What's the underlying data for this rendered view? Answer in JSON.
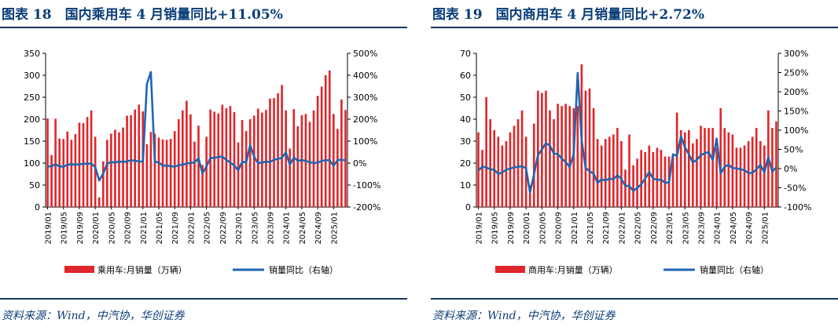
{
  "colors": {
    "bar": "#e0262b",
    "line": "#1f66b0",
    "title": "#0a3d78",
    "rule": "#17375e"
  },
  "x_tick_labels": [
    "2019/01",
    "2019/05",
    "2019/09",
    "2020/01",
    "2020/05",
    "2020/09",
    "2021/01",
    "2021/05",
    "2021/09",
    "2022/01",
    "2022/05",
    "2022/09",
    "2023/01",
    "2023/05",
    "2023/09",
    "2024/01",
    "2024/05",
    "2024/09",
    "2025/01"
  ],
  "chart_data": [
    {
      "type": "bar",
      "title": "图表 18　国内乘用车 4 月销量同比+11.05%",
      "source": "资料来源：Wind，中汽协，华创证券",
      "legend": {
        "bar": "乘用车:月销量（万辆）",
        "line": "销量同比（右轴）",
        "placement": "bottom"
      },
      "categories": [
        "2019/01",
        "2019/02",
        "2019/03",
        "2019/04",
        "2019/05",
        "2019/06",
        "2019/07",
        "2019/08",
        "2019/09",
        "2019/10",
        "2019/11",
        "2019/12",
        "2020/01",
        "2020/02",
        "2020/03",
        "2020/04",
        "2020/05",
        "2020/06",
        "2020/07",
        "2020/08",
        "2020/09",
        "2020/10",
        "2020/11",
        "2020/12",
        "2021/01",
        "2021/02",
        "2021/03",
        "2021/04",
        "2021/05",
        "2021/06",
        "2021/07",
        "2021/08",
        "2021/09",
        "2021/10",
        "2021/11",
        "2021/12",
        "2022/01",
        "2022/02",
        "2022/03",
        "2022/04",
        "2022/05",
        "2022/06",
        "2022/07",
        "2022/08",
        "2022/09",
        "2022/10",
        "2022/11",
        "2022/12",
        "2023/01",
        "2023/02",
        "2023/03",
        "2023/04",
        "2023/05",
        "2023/06",
        "2023/07",
        "2023/08",
        "2023/09",
        "2023/10",
        "2023/11",
        "2023/12",
        "2024/01",
        "2024/02",
        "2024/03",
        "2024/04",
        "2024/05",
        "2024/06",
        "2024/07",
        "2024/08",
        "2024/09",
        "2024/10",
        "2024/11",
        "2024/12",
        "2025/01",
        "2025/02",
        "2025/03",
        "2025/04"
      ],
      "ylim": [
        0,
        350
      ],
      "y_ticks": [
        0,
        50,
        100,
        150,
        200,
        250,
        300,
        350
      ],
      "y2lim": [
        -200,
        500
      ],
      "y2_ticks": [
        "-200%",
        "-100%",
        "0%",
        "100%",
        "200%",
        "300%",
        "400%",
        "500%"
      ],
      "series": [
        {
          "name": "乘用车:月销量（万辆）",
          "type": "bar",
          "axis": "left",
          "values": [
            202,
            118,
            201,
            156,
            155,
            172,
            153,
            166,
            192,
            191,
            205,
            220,
            160,
            22,
            104,
            153,
            167,
            176,
            170,
            181,
            208,
            209,
            222,
            233,
            218,
            143,
            171,
            167,
            158,
            154,
            153,
            155,
            173,
            200,
            220,
            242,
            211,
            149,
            185,
            96,
            160,
            222,
            217,
            213,
            233,
            225,
            230,
            216,
            147,
            198,
            173,
            200,
            208,
            224,
            215,
            221,
            247,
            248,
            259,
            278,
            220,
            133,
            223,
            184,
            209,
            212,
            194,
            220,
            253,
            274,
            300,
            311,
            212,
            178,
            245,
            221
          ]
        },
        {
          "name": "销量同比（右轴）",
          "type": "line",
          "axis": "right",
          "values": [
            -16,
            -14,
            -5,
            -15,
            -17,
            -7,
            -5,
            -7,
            -6,
            -3,
            -3,
            -2,
            -18,
            -79,
            -48,
            -3,
            5,
            2,
            8,
            5,
            8,
            13,
            11,
            7,
            7,
            359,
            415,
            6,
            3,
            -12,
            -11,
            -14,
            -16,
            -10,
            -7,
            -2,
            1,
            3,
            22,
            -47,
            -15,
            24,
            23,
            29,
            29,
            15,
            2,
            -11,
            -33,
            6,
            3,
            82,
            29,
            -1,
            3,
            6,
            5,
            15,
            19,
            24,
            49,
            -7,
            26,
            10,
            14,
            10,
            4,
            0,
            2,
            10,
            13,
            13,
            -12,
            13,
            16,
            11
          ]
        }
      ]
    },
    {
      "type": "bar",
      "title": "图表 19　国内商用车 4 月销量同比+2.72%",
      "source": "资料来源：Wind，中汽协，华创证券",
      "legend": {
        "bar": "商用车:月销量（万辆）",
        "line": "销量同比（右轴）",
        "placement": "bottom"
      },
      "categories": [
        "2019/01",
        "2019/02",
        "2019/03",
        "2019/04",
        "2019/05",
        "2019/06",
        "2019/07",
        "2019/08",
        "2019/09",
        "2019/10",
        "2019/11",
        "2019/12",
        "2020/01",
        "2020/02",
        "2020/03",
        "2020/04",
        "2020/05",
        "2020/06",
        "2020/07",
        "2020/08",
        "2020/09",
        "2020/10",
        "2020/11",
        "2020/12",
        "2021/01",
        "2021/02",
        "2021/03",
        "2021/04",
        "2021/05",
        "2021/06",
        "2021/07",
        "2021/08",
        "2021/09",
        "2021/10",
        "2021/11",
        "2021/12",
        "2022/01",
        "2022/02",
        "2022/03",
        "2022/04",
        "2022/05",
        "2022/06",
        "2022/07",
        "2022/08",
        "2022/09",
        "2022/10",
        "2022/11",
        "2022/12",
        "2023/01",
        "2023/02",
        "2023/03",
        "2023/04",
        "2023/05",
        "2023/06",
        "2023/07",
        "2023/08",
        "2023/09",
        "2023/10",
        "2023/11",
        "2023/12",
        "2024/01",
        "2024/02",
        "2024/03",
        "2024/04",
        "2024/05",
        "2024/06",
        "2024/07",
        "2024/08",
        "2024/09",
        "2024/10",
        "2024/11",
        "2024/12",
        "2025/01",
        "2025/02",
        "2025/03",
        "2025/04"
      ],
      "ylim": [
        0,
        70
      ],
      "y_ticks": [
        0,
        10,
        20,
        30,
        40,
        50,
        60,
        70
      ],
      "y2lim": [
        -100,
        300
      ],
      "y2_ticks": [
        "-100%",
        "-50%",
        "0%",
        "50%",
        "100%",
        "150%",
        "200%",
        "250%",
        "300%"
      ],
      "series": [
        {
          "name": "商用车:月销量（万辆）",
          "type": "bar",
          "axis": "left",
          "values": [
            34,
            26,
            50,
            40,
            35,
            32,
            28,
            30,
            34,
            37,
            40,
            44,
            32,
            10,
            38,
            53,
            52,
            53,
            44,
            40,
            47,
            46,
            47,
            46,
            45,
            46,
            65,
            53,
            54,
            45,
            31,
            28,
            31,
            32,
            33,
            36,
            30,
            17,
            33,
            19,
            22,
            26,
            25,
            28,
            25,
            27,
            26,
            23,
            23,
            23,
            43,
            35,
            34,
            35,
            29,
            31,
            37,
            36,
            36,
            36,
            27,
            45,
            36,
            34,
            33,
            27,
            27,
            28,
            30,
            32,
            36,
            30,
            28,
            44,
            36,
            39
          ]
        },
        {
          "name": "销量同比（右轴）",
          "type": "line",
          "axis": "right",
          "values": [
            -5,
            5,
            3,
            -2,
            -3,
            -14,
            -10,
            -3,
            0,
            3,
            5,
            6,
            1,
            -62,
            -15,
            35,
            50,
            66,
            60,
            39,
            38,
            26,
            17,
            4,
            38,
            249,
            73,
            2,
            -7,
            -13,
            -37,
            -28,
            -31,
            -26,
            -28,
            -17,
            -27,
            -45,
            -45,
            -58,
            -50,
            -41,
            -26,
            -9,
            -26,
            -29,
            -29,
            -37,
            -36,
            37,
            33,
            84,
            56,
            37,
            16,
            23,
            35,
            40,
            43,
            22,
            78,
            -13,
            5,
            10,
            1,
            1,
            -2,
            -4,
            -12,
            -11,
            -2,
            10,
            -10,
            30,
            -8,
            3
          ]
        }
      ]
    }
  ]
}
